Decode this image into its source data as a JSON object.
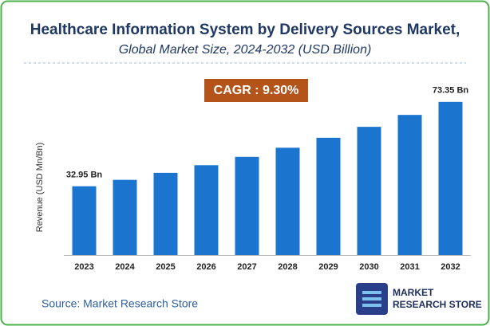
{
  "chart_data": {
    "type": "bar",
    "title": "Healthcare Information System by Delivery Sources Market,",
    "subtitle": "Global Market Size, 2024-2032 (USD Billion)",
    "annotation": "CAGR : 9.30%",
    "y_label": "Revenue (USD Mn/Bn)",
    "categories": [
      "2023",
      "2024",
      "2025",
      "2026",
      "2027",
      "2028",
      "2029",
      "2030",
      "2031",
      "2032"
    ],
    "values": [
      32.95,
      36.01,
      39.36,
      43.02,
      47.02,
      51.39,
      56.17,
      61.4,
      67.11,
      73.35
    ],
    "value_labels": [
      "32.95 Bn",
      null,
      null,
      null,
      null,
      null,
      null,
      null,
      null,
      "73.35 Bn"
    ],
    "color": "#1b75cf",
    "source": "Source: Market Research Store",
    "logo": [
      "MARKET",
      "RESEARCH STORE"
    ]
  }
}
